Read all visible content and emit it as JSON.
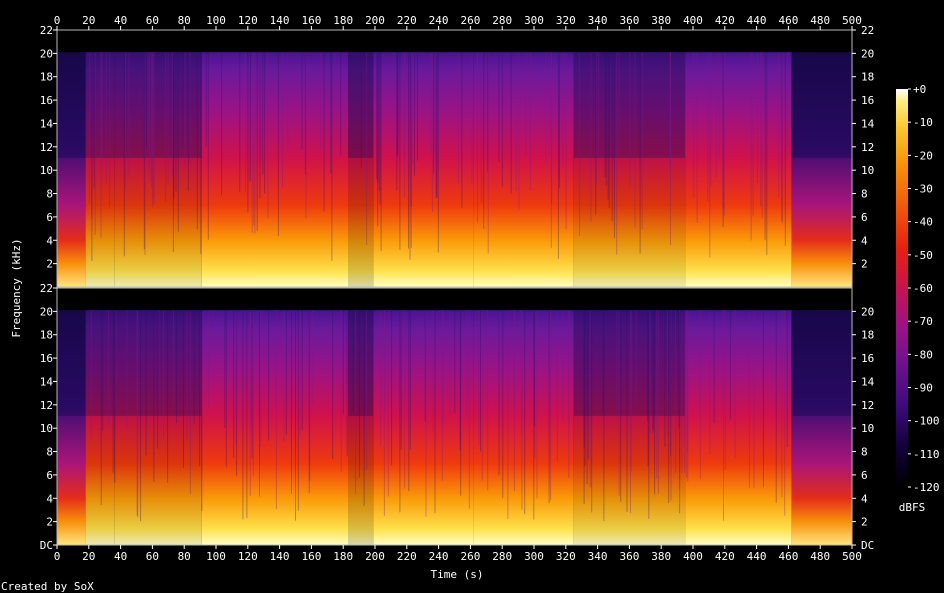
{
  "chart_data": {
    "type": "heatmap",
    "title": "",
    "xlabel": "Time (s)",
    "ylabel": "Frequency (kHz)",
    "xlim": [
      0,
      500
    ],
    "ylim": [
      0,
      22
    ],
    "x_ticks": [
      "0",
      "20",
      "40",
      "60",
      "80",
      "100",
      "120",
      "140",
      "160",
      "180",
      "200",
      "220",
      "240",
      "260",
      "280",
      "300",
      "320",
      "340",
      "360",
      "380",
      "400",
      "420",
      "440",
      "460",
      "480",
      "500"
    ],
    "channels": [
      {
        "y_ticks": [
          "2",
          "4",
          "6",
          "8",
          "10",
          "12",
          "14",
          "16",
          "18",
          "20",
          "22"
        ],
        "y_ticks_right": [
          "2",
          "4",
          "6",
          "8",
          "10",
          "12",
          "14",
          "16",
          "18",
          "20",
          "22"
        ]
      },
      {
        "y_ticks": [
          "DC",
          "2",
          "4",
          "6",
          "8",
          "10",
          "12",
          "14",
          "16",
          "18",
          "20",
          "22"
        ],
        "y_ticks_right": [
          "DC",
          "2",
          "4",
          "6",
          "8",
          "10",
          "12",
          "14",
          "16",
          "18",
          "20"
        ]
      }
    ],
    "colorbar": {
      "label": "dBFS",
      "ticks": [
        "+0",
        "-10",
        "-20",
        "-30",
        "-40",
        "-50",
        "-60",
        "-70",
        "-80",
        "-90",
        "-100",
        "-110",
        "-120"
      ],
      "range": [
        -120,
        0
      ],
      "colors": [
        "#000000",
        "#12003a",
        "#3b0a7a",
        "#6b0f91",
        "#9a1288",
        "#c8124f",
        "#e8200f",
        "#f2560a",
        "#f98c06",
        "#fcc52a",
        "#fdf07c",
        "#ffffff"
      ]
    },
    "segments": [
      {
        "t0": 0,
        "t1": 18,
        "cutoff_khz": 20.1,
        "level": "quiet"
      },
      {
        "t0": 18,
        "t1": 36,
        "cutoff_khz": 20.1,
        "level": "medium"
      },
      {
        "t0": 36,
        "t1": 91,
        "cutoff_khz": 20.1,
        "level": "medium"
      },
      {
        "t0": 91,
        "t1": 183,
        "cutoff_khz": 20.1,
        "level": "loud"
      },
      {
        "t0": 183,
        "t1": 199,
        "cutoff_khz": 20.1,
        "level": "dip"
      },
      {
        "t0": 199,
        "t1": 262,
        "cutoff_khz": 20.1,
        "level": "loud"
      },
      {
        "t0": 262,
        "t1": 325,
        "cutoff_khz": 20.1,
        "level": "loud"
      },
      {
        "t0": 325,
        "t1": 395,
        "cutoff_khz": 20.1,
        "level": "medium"
      },
      {
        "t0": 395,
        "t1": 462,
        "cutoff_khz": 20.1,
        "level": "loud"
      },
      {
        "t0": 462,
        "t1": 500,
        "cutoff_khz": 20.1,
        "level": "quiet"
      }
    ]
  },
  "footer": {
    "credit": "Created by SoX"
  }
}
